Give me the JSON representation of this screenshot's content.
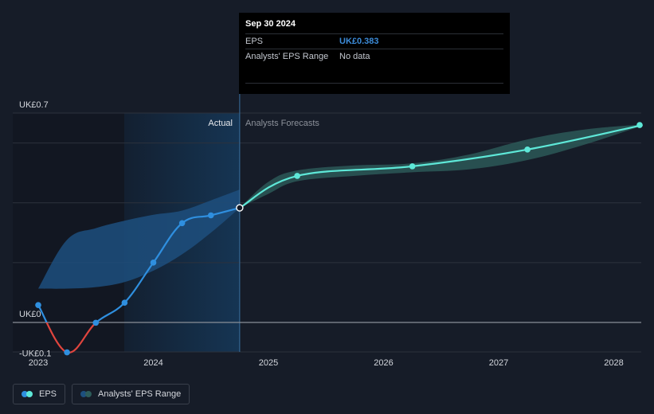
{
  "chart_data": {
    "type": "line",
    "title": "EPS",
    "ylim": [
      -0.1,
      0.7
    ],
    "y_tick_labels": [
      {
        "label": "UK£0.7",
        "value": 0.7
      },
      {
        "label": "UK£0",
        "value": 0
      },
      {
        "label": "-UK£0.1",
        "value": -0.1
      }
    ],
    "x_ticks": [
      {
        "label": "2023",
        "value": 2023.0
      },
      {
        "label": "2024",
        "value": 2024.0
      },
      {
        "label": "2025",
        "value": 2025.0
      },
      {
        "label": "2026",
        "value": 2026.0
      },
      {
        "label": "2027",
        "value": 2027.0
      },
      {
        "label": "2028",
        "value": 2028.0
      }
    ],
    "xlim": [
      2022.77,
      2028.24
    ],
    "actual_label": "Actual",
    "forecast_label": "Analysts Forecasts",
    "actual_end": 2024.75,
    "highlight_start": 2023.75,
    "series": [
      {
        "name": "EPS (actual)",
        "color_positive": "#2f8fdf",
        "color_negative": "#e0453e",
        "points": [
          {
            "x": 2023.0,
            "y": 0.058
          },
          {
            "x": 2023.25,
            "y": -0.1
          },
          {
            "x": 2023.5,
            "y": -0.001
          },
          {
            "x": 2023.75,
            "y": 0.066
          },
          {
            "x": 2024.0,
            "y": 0.2
          },
          {
            "x": 2024.25,
            "y": 0.332
          },
          {
            "x": 2024.5,
            "y": 0.358
          },
          {
            "x": 2024.75,
            "y": 0.383
          }
        ]
      },
      {
        "name": "EPS (forecast)",
        "color": "#5ee8d8",
        "points": [
          {
            "x": 2024.75,
            "y": 0.383
          },
          {
            "x": 2025.25,
            "y": 0.49
          },
          {
            "x": 2026.25,
            "y": 0.522
          },
          {
            "x": 2027.25,
            "y": 0.578
          },
          {
            "x": 2028.25,
            "y": 0.66
          }
        ]
      }
    ],
    "actual_range": {
      "x": [
        2023.0,
        2023.25,
        2023.5,
        2023.75,
        2024.0,
        2024.25,
        2024.5,
        2024.75
      ],
      "upper": [
        0.113,
        0.276,
        0.315,
        0.34,
        0.36,
        0.374,
        0.408,
        0.444
      ],
      "lower": [
        0.113,
        0.113,
        0.118,
        0.135,
        0.173,
        0.228,
        0.3,
        0.383
      ]
    },
    "forecast_range": {
      "x": [
        2024.75,
        2025.0,
        2025.25,
        2025.75,
        2026.25,
        2026.75,
        2027.25,
        2027.75,
        2028.25
      ],
      "upper": [
        0.383,
        0.47,
        0.508,
        0.525,
        0.532,
        0.562,
        0.612,
        0.645,
        0.662
      ],
      "lower": [
        0.383,
        0.43,
        0.472,
        0.49,
        0.502,
        0.512,
        0.543,
        0.595,
        0.658
      ]
    }
  },
  "tooltip": {
    "date": "Sep 30 2024",
    "eps_label": "EPS",
    "eps_value": "UK£0.383",
    "range_label": "Analysts' EPS Range",
    "range_value": "No data"
  },
  "legend": {
    "eps_label": "EPS",
    "range_label": "Analysts' EPS Range"
  },
  "colors": {
    "background": "#161c28",
    "grid": "#2c323d",
    "actual_line": "#2f8fdf",
    "negative_line": "#e0453e",
    "forecast_line": "#5ee8d8",
    "actual_band": "#1d4f7e",
    "forecast_band": "#2d5c5a",
    "highlight": "#163a5c"
  }
}
